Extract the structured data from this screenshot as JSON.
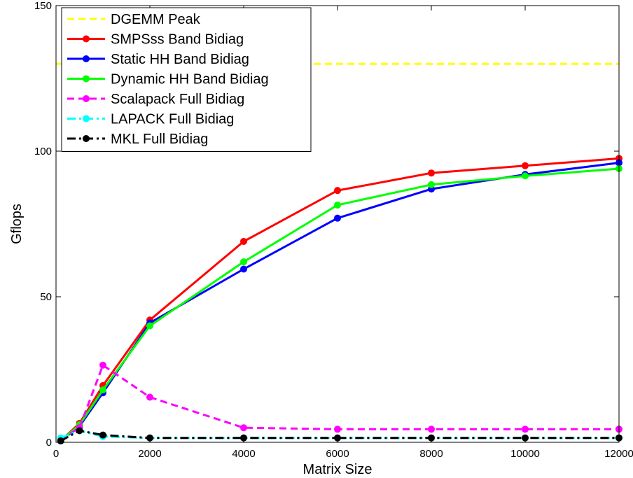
{
  "chart_data": {
    "type": "line",
    "title": "",
    "xlabel": "Matrix Size",
    "ylabel": "Gflops",
    "xlim": [
      0,
      12000
    ],
    "ylim": [
      0,
      150
    ],
    "xticks": [
      0,
      2000,
      4000,
      6000,
      8000,
      10000,
      12000
    ],
    "yticks": [
      0,
      50,
      100,
      150
    ],
    "xtick_labels": [
      "0",
      "2000",
      "4000",
      "6000",
      "8000",
      "10000",
      "12000"
    ],
    "ytick_labels": [
      "0",
      "50",
      "100",
      "150"
    ],
    "grid": false,
    "legend_position": "top-left",
    "x": [
      100,
      500,
      1000,
      2000,
      4000,
      6000,
      8000,
      10000,
      12000
    ],
    "series": [
      {
        "name": "DGEMM Peak",
        "color": "#ffff00",
        "dash": "dashed",
        "marker": false,
        "x": [
          0,
          12000
        ],
        "values": [
          130,
          130
        ]
      },
      {
        "name": "SMPSss Band Bidiag",
        "color": "#ff0000",
        "dash": "solid",
        "marker": true,
        "values": [
          0.5,
          6.5,
          19.5,
          42,
          69,
          86.5,
          92.5,
          95,
          97.5
        ]
      },
      {
        "name": "Static HH Band Bidiag",
        "color": "#0000ff",
        "dash": "solid",
        "marker": true,
        "values": [
          0.5,
          5.5,
          17,
          41,
          59.5,
          77,
          87,
          92,
          96
        ]
      },
      {
        "name": "Dynamic HH Band Bidiag",
        "color": "#00ff00",
        "dash": "solid",
        "marker": true,
        "values": [
          0.5,
          6,
          18,
          40,
          62,
          81.5,
          88.5,
          91.5,
          94
        ]
      },
      {
        "name": "Scalapack Full Bidiag",
        "color": "#ff00ff",
        "dash": "dashed",
        "marker": true,
        "values": [
          1,
          5,
          26.5,
          15.5,
          5,
          4.5,
          4.5,
          4.5,
          4.5
        ]
      },
      {
        "name": "LAPACK Full Bidiag",
        "color": "#00ffff",
        "dash": "dashdot",
        "marker": true,
        "values": [
          1.5,
          4,
          2,
          1.5,
          1.5,
          1.5,
          1.5,
          1.5,
          1.5
        ]
      },
      {
        "name": "MKL Full Bidiag",
        "color": "#000000",
        "dash": "dashdot",
        "marker": true,
        "values": [
          0.5,
          4,
          2.5,
          1.5,
          1.5,
          1.5,
          1.5,
          1.5,
          1.5
        ]
      }
    ]
  }
}
